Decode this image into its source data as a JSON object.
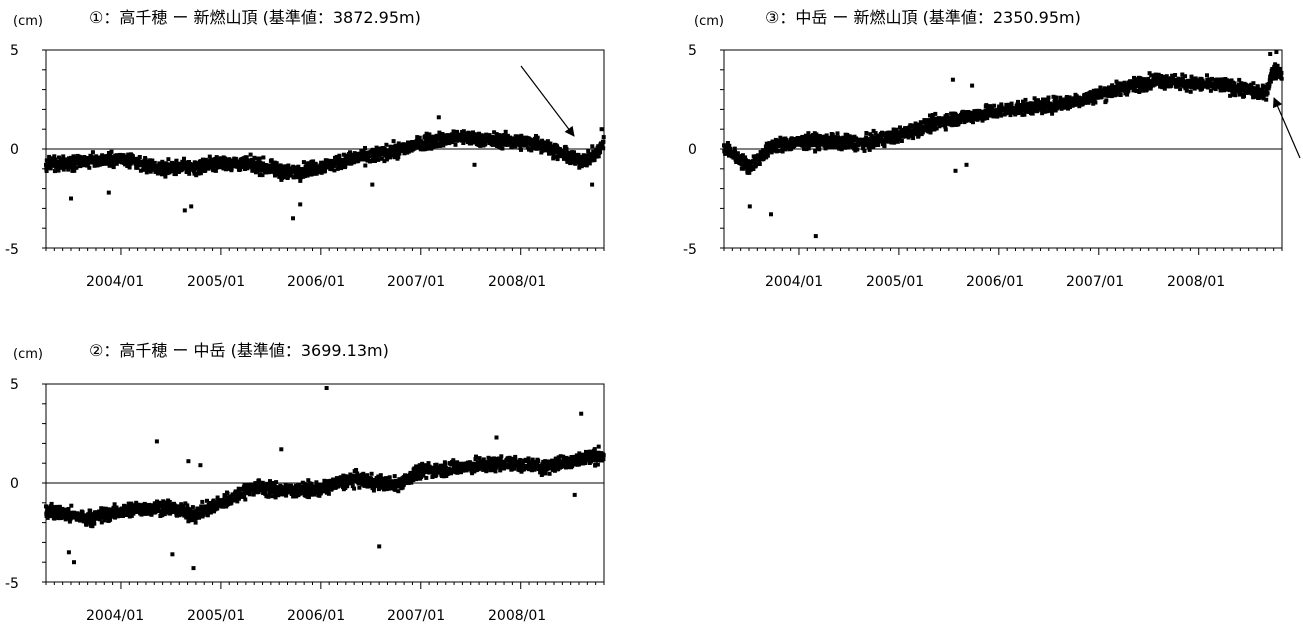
{
  "chart_data": [
    {
      "type": "scatter",
      "title": "①：高千穂 ー 新燃山頂 (基準値：3872.95m)",
      "ylabel": "(cm)",
      "ylim": [
        -5,
        5
      ],
      "yticks": [
        "5",
        "0",
        "-5"
      ],
      "xticks": [
        "2004/01",
        "2005/01",
        "2006/01",
        "2007/01",
        "2008/01"
      ],
      "xlim": [
        "2003-04",
        "2008-11"
      ],
      "grid": false,
      "series": [
        {
          "trend": [
            [
              "2003-04",
              -0.8
            ],
            [
              "2003-09",
              -0.6
            ],
            [
              "2004-01",
              -0.5
            ],
            [
              "2004-06",
              -1.0
            ],
            [
              "2004-10",
              -0.9
            ],
            [
              "2005-01",
              -0.7
            ],
            [
              "2005-05",
              -0.8
            ],
            [
              "2005-09",
              -1.2
            ],
            [
              "2006-01",
              -0.9
            ],
            [
              "2006-06",
              -0.4
            ],
            [
              "2006-10",
              -0.1
            ],
            [
              "2007-02",
              0.4
            ],
            [
              "2007-06",
              0.6
            ],
            [
              "2007-11",
              0.4
            ],
            [
              "2008-03",
              0.3
            ],
            [
              "2008-08",
              -0.6
            ],
            [
              "2008-10",
              -0.3
            ],
            [
              "2008-11",
              0.3
            ]
          ],
          "outliers": [
            [
              "2003-07",
              -2.5
            ],
            [
              "2003-11",
              -2.2
            ],
            [
              "2004-08",
              -3.1
            ],
            [
              "2004-09",
              -2.9
            ],
            [
              "2005-09",
              -3.5
            ],
            [
              "2005-10",
              -2.8
            ],
            [
              "2006-07",
              -1.8
            ],
            [
              "2007-03",
              1.6
            ],
            [
              "2007-07",
              -0.8
            ],
            [
              "2008-09",
              -1.8
            ],
            [
              "2008-10",
              1.0
            ]
          ]
        }
      ],
      "annotation": {
        "type": "arrow",
        "points_to": [
          "2008-09",
          -0.3
        ]
      }
    },
    {
      "type": "scatter",
      "title": "③：中岳 ー 新燃山頂 (基準値：2350.95m)",
      "ylabel": "(cm)",
      "ylim": [
        -5,
        5
      ],
      "yticks": [
        "5",
        "0",
        "-5"
      ],
      "xticks": [
        "2004/01",
        "2005/01",
        "2006/01",
        "2007/01",
        "2008/01"
      ],
      "xlim": [
        "2003-04",
        "2008-11"
      ],
      "grid": false,
      "series": [
        {
          "trend": [
            [
              "2003-04",
              0.1
            ],
            [
              "2003-07",
              -0.9
            ],
            [
              "2003-10",
              0.2
            ],
            [
              "2004-03",
              0.4
            ],
            [
              "2004-09",
              0.3
            ],
            [
              "2005-01",
              0.7
            ],
            [
              "2005-06",
              1.4
            ],
            [
              "2005-10",
              1.7
            ],
            [
              "2006-02",
              2.0
            ],
            [
              "2006-07",
              2.2
            ],
            [
              "2006-11",
              2.5
            ],
            [
              "2007-03",
              3.0
            ],
            [
              "2007-08",
              3.5
            ],
            [
              "2007-12",
              3.3
            ],
            [
              "2008-04",
              3.2
            ],
            [
              "2008-09",
              2.8
            ],
            [
              "2008-10",
              4.0
            ],
            [
              "2008-11",
              3.8
            ]
          ],
          "outliers": [
            [
              "2003-07",
              -2.9
            ],
            [
              "2003-09",
              -3.3
            ],
            [
              "2004-03",
              -4.4
            ],
            [
              "2005-07",
              3.5
            ],
            [
              "2005-07",
              -1.1
            ],
            [
              "2005-09",
              -0.8
            ],
            [
              "2005-09",
              3.2
            ],
            [
              "2008-09",
              4.8
            ],
            [
              "2008-10",
              4.9
            ]
          ]
        }
      ],
      "annotation": {
        "type": "arrow",
        "points_to": [
          "2008-11",
          2.4
        ]
      }
    },
    {
      "type": "scatter",
      "title": "②：高千穂 ー 中岳 (基準値：3699.13m)",
      "ylabel": "(cm)",
      "ylim": [
        -5,
        5
      ],
      "yticks": [
        "5",
        "0",
        "-5"
      ],
      "xticks": [
        "2004/01",
        "2005/01",
        "2006/01",
        "2007/01",
        "2008/01"
      ],
      "xlim": [
        "2003-04",
        "2008-11"
      ],
      "grid": false,
      "series": [
        {
          "trend": [
            [
              "2003-04",
              -1.4
            ],
            [
              "2003-09",
              -1.8
            ],
            [
              "2004-01",
              -1.4
            ],
            [
              "2004-06",
              -1.2
            ],
            [
              "2004-10",
              -1.6
            ],
            [
              "2005-01",
              -1.0
            ],
            [
              "2005-05",
              -0.2
            ],
            [
              "2005-09",
              -0.4
            ],
            [
              "2006-01",
              -0.3
            ],
            [
              "2006-05",
              0.2
            ],
            [
              "2006-10",
              -0.1
            ],
            [
              "2007-01",
              0.6
            ],
            [
              "2007-06",
              0.8
            ],
            [
              "2007-11",
              1.0
            ],
            [
              "2008-04",
              0.8
            ],
            [
              "2008-08",
              1.2
            ],
            [
              "2008-11",
              1.4
            ]
          ],
          "outliers": [
            [
              "2004-05",
              2.1
            ],
            [
              "2004-09",
              1.1
            ],
            [
              "2004-10",
              0.9
            ],
            [
              "2005-08",
              1.7
            ],
            [
              "2006-01",
              4.8
            ],
            [
              "2003-06",
              -3.5
            ],
            [
              "2003-07",
              -4.0
            ],
            [
              "2004-07",
              -3.6
            ],
            [
              "2004-09",
              -4.3
            ],
            [
              "2006-08",
              -3.2
            ],
            [
              "2007-10",
              2.3
            ],
            [
              "2008-08",
              3.5
            ],
            [
              "2008-07",
              -0.6
            ]
          ]
        }
      ]
    }
  ]
}
